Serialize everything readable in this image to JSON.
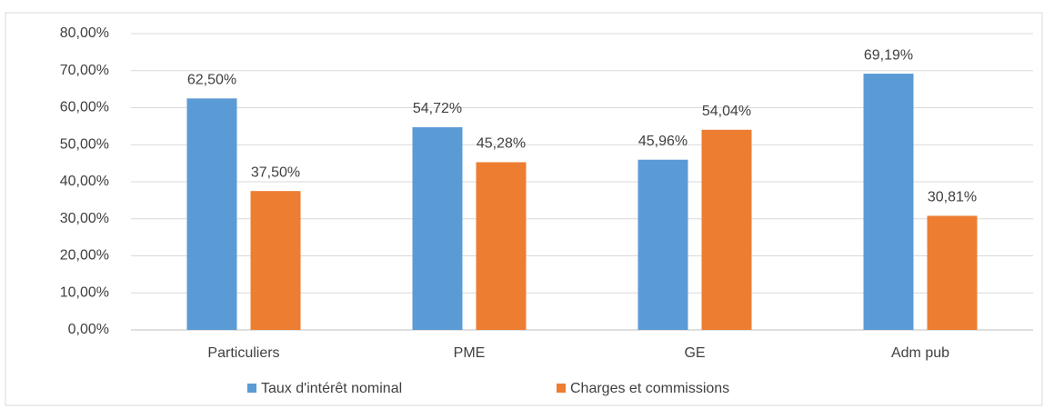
{
  "chart_data": {
    "type": "bar",
    "categories": [
      "Particuliers",
      "PME",
      "GE",
      "Adm pub"
    ],
    "series": [
      {
        "name": "Taux d'intérêt nominal",
        "color": "#5b9bd5",
        "values": [
          62.5,
          54.72,
          45.96,
          69.19
        ],
        "value_labels": [
          "62,50%",
          "54,72%",
          "45,96%",
          "69,19%"
        ]
      },
      {
        "name": "Charges et commissions",
        "color": "#ed7d31",
        "values": [
          37.5,
          45.28,
          54.04,
          30.81
        ],
        "value_labels": [
          "37,50%",
          "45,28%",
          "54,04%",
          "30,81%"
        ]
      }
    ],
    "ylim": [
      0,
      80
    ],
    "yticks": [
      {
        "value": 0,
        "label": "0,00%"
      },
      {
        "value": 10,
        "label": "10,00%"
      },
      {
        "value": 20,
        "label": "20,00%"
      },
      {
        "value": 30,
        "label": "30,00%"
      },
      {
        "value": 40,
        "label": "40,00%"
      },
      {
        "value": 50,
        "label": "50,00%"
      },
      {
        "value": 60,
        "label": "60,00%"
      },
      {
        "value": 70,
        "label": "70,00%"
      },
      {
        "value": 80,
        "label": "80,00%"
      }
    ],
    "grid": true,
    "legend": "bottom"
  }
}
